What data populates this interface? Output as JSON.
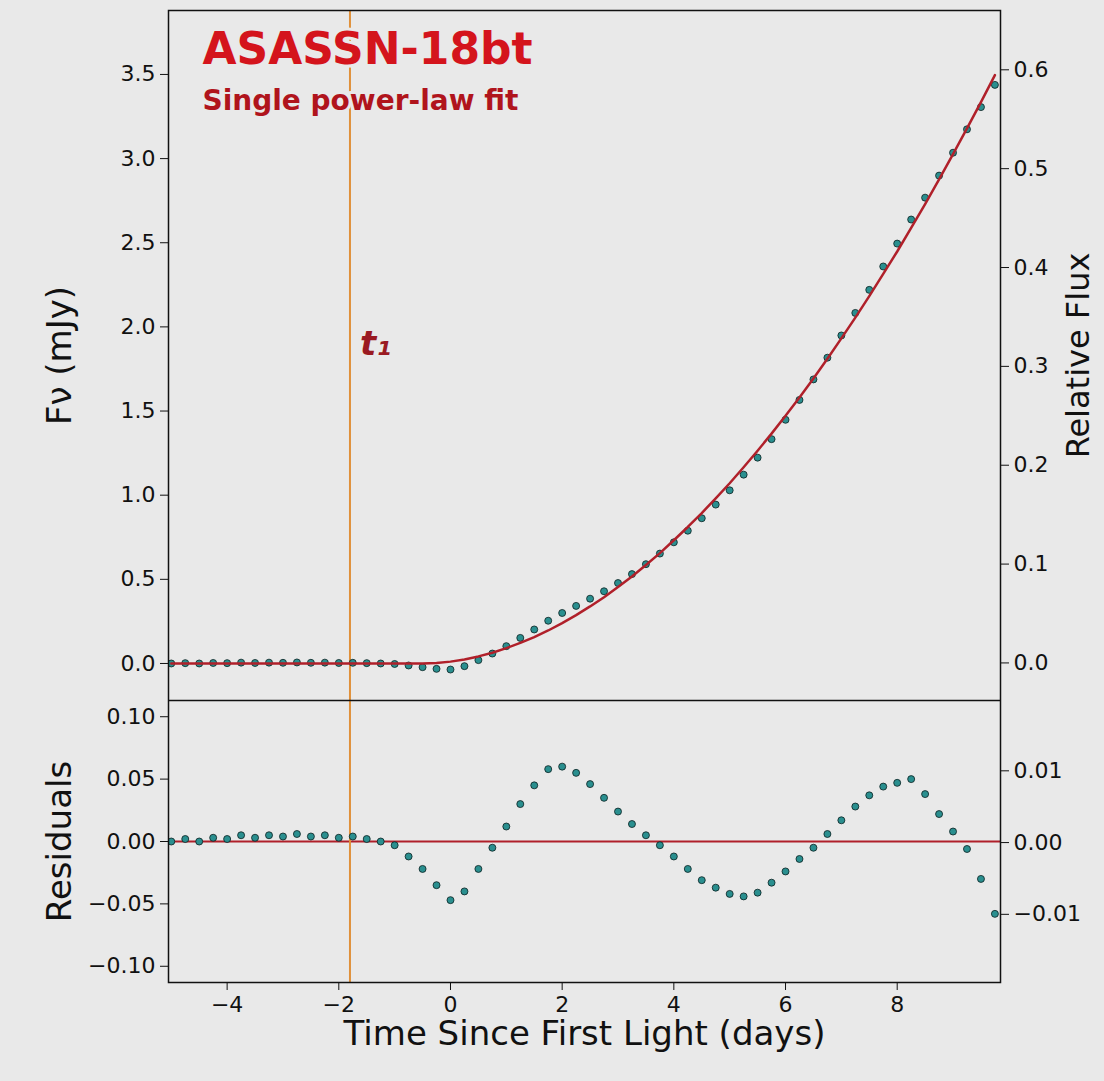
{
  "chart_data": [
    {
      "type": "scatter",
      "title": "ASASSN-18bt",
      "subtitle": "Single power-law fit",
      "ylabel": "Fν (mJy)",
      "y2label": "Relative Flux",
      "grid": false,
      "tick_labels": "y",
      "x": [
        -5,
        -4.75,
        -4.5,
        -4.25,
        -4,
        -3.75,
        -3.5,
        -3.25,
        -3,
        -2.75,
        -2.5,
        -2.25,
        -2,
        -1.75,
        -1.5,
        -1.25,
        -1,
        -0.75,
        -0.5,
        -0.25,
        0,
        0.25,
        0.5,
        0.75,
        1,
        1.25,
        1.5,
        1.75,
        2,
        2.25,
        2.5,
        2.75,
        3,
        3.25,
        3.5,
        3.75,
        4,
        4.25,
        4.5,
        4.75,
        5,
        5.25,
        5.5,
        5.75,
        6,
        6.25,
        6.5,
        6.75,
        7,
        7.25,
        7.5,
        7.75,
        8,
        8.25,
        8.5,
        8.75,
        9,
        9.25,
        9.5,
        9.75
      ],
      "xlim": [
        -5.05,
        9.85
      ],
      "xticks": [
        {
          "value": -4,
          "label": "−4"
        },
        {
          "value": -2,
          "label": "−2"
        },
        0,
        2,
        4,
        6,
        8
      ],
      "ylim": [
        -0.22,
        3.88
      ],
      "yticks": [
        {
          "value": 0,
          "label": "0.0"
        },
        0.5,
        {
          "value": 1,
          "label": "1.0"
        },
        1.5,
        {
          "value": 2,
          "label": "2.0"
        },
        2.5,
        {
          "value": 3,
          "label": "3.0"
        },
        3.5
      ],
      "y2lim": [
        -0.038,
        0.66
      ],
      "y2ticks": [
        {
          "value": 0,
          "label": "0.0"
        },
        0.1,
        0.2,
        0.3,
        0.4,
        0.5,
        0.6
      ],
      "series": [
        {
          "type": "scatter",
          "color": "#2a8f8f",
          "marker": "circle",
          "values": [
            0,
            0.002,
            0,
            0.003,
            0.002,
            0.005,
            0.003,
            0.005,
            0.004,
            0.006,
            0.004,
            0.005,
            0.003,
            0.004,
            0.002,
            0,
            -0.003,
            -0.012,
            -0.022,
            -0.032,
            -0.036,
            -0.016,
            0.02,
            0.059,
            0.103,
            0.152,
            0.202,
            0.254,
            0.3,
            0.342,
            0.385,
            0.429,
            0.478,
            0.531,
            0.59,
            0.653,
            0.72,
            0.789,
            0.863,
            0.944,
            1.029,
            1.122,
            1.223,
            1.333,
            1.448,
            1.566,
            1.688,
            1.817,
            1.949,
            2.083,
            2.22,
            2.359,
            2.495,
            2.638,
            2.768,
            2.899,
            3.035,
            3.174,
            3.306,
            3.438
          ]
        },
        {
          "type": "line",
          "color": "#b0202a",
          "line_style": "solid",
          "values": [
            0,
            0,
            0,
            0,
            0,
            0,
            0,
            0,
            0,
            0,
            0,
            0,
            0,
            0,
            0,
            0,
            0,
            0,
            0,
            0.003,
            0.011,
            0.024,
            0.042,
            0.064,
            0.091,
            0.122,
            0.157,
            0.196,
            0.24,
            0.287,
            0.339,
            0.394,
            0.454,
            0.517,
            0.585,
            0.656,
            0.732,
            0.811,
            0.894,
            0.981,
            1.071,
            1.166,
            1.264,
            1.366,
            1.472,
            1.58,
            1.693,
            1.811,
            1.932,
            2.055,
            2.183,
            2.315,
            2.448,
            2.588,
            2.73,
            2.877,
            3.027,
            3.18,
            3.336,
            3.496
          ]
        }
      ],
      "vlines": [
        {
          "x": -1.8,
          "color": "#e0903a",
          "label": "t₁"
        }
      ]
    },
    {
      "type": "scatter",
      "xlabel": "Time Since First Light (days)",
      "ylabel": "Residuals",
      "grid": false,
      "tick_labels": true,
      "x": [
        -5,
        -4.75,
        -4.5,
        -4.25,
        -4,
        -3.75,
        -3.5,
        -3.25,
        -3,
        -2.75,
        -2.5,
        -2.25,
        -2,
        -1.75,
        -1.5,
        -1.25,
        -1,
        -0.75,
        -0.5,
        -0.25,
        0,
        0.25,
        0.5,
        0.75,
        1,
        1.25,
        1.5,
        1.75,
        2,
        2.25,
        2.5,
        2.75,
        3,
        3.25,
        3.5,
        3.75,
        4,
        4.25,
        4.5,
        4.75,
        5,
        5.25,
        5.5,
        5.75,
        6,
        6.25,
        6.5,
        6.75,
        7,
        7.25,
        7.5,
        7.75,
        8,
        8.25,
        8.5,
        8.75,
        9,
        9.25,
        9.5,
        9.75
      ],
      "xlim": [
        -5.05,
        9.85
      ],
      "xticks": [
        {
          "value": -4,
          "label": "−4"
        },
        {
          "value": -2,
          "label": "−2"
        },
        0,
        2,
        4,
        6,
        8
      ],
      "ylim": [
        -0.113,
        0.113
      ],
      "yticks": [
        {
          "value": -0.1,
          "label": "−0.10"
        },
        {
          "value": -0.05,
          "label": "−0.05"
        },
        {
          "value": 0,
          "label": "0.00"
        },
        0.05,
        {
          "value": 0.1,
          "label": "0.10"
        }
      ],
      "y2lim": [
        -0.0195,
        0.0198
      ],
      "y2ticks": [
        {
          "value": -0.01,
          "label": "−0.01"
        },
        {
          "value": 0,
          "label": "0.00"
        },
        0.01
      ],
      "series": [
        {
          "type": "scatter",
          "color": "#2a8f8f",
          "marker": "circle",
          "values": [
            0,
            0.002,
            0,
            0.003,
            0.002,
            0.005,
            0.003,
            0.005,
            0.004,
            0.006,
            0.004,
            0.005,
            0.003,
            0.004,
            0.002,
            0,
            -0.003,
            -0.012,
            -0.022,
            -0.035,
            -0.047,
            -0.04,
            -0.022,
            -0.005,
            0.012,
            0.03,
            0.045,
            0.058,
            0.06,
            0.055,
            0.046,
            0.035,
            0.024,
            0.014,
            0.005,
            -0.003,
            -0.012,
            -0.022,
            -0.031,
            -0.037,
            -0.042,
            -0.044,
            -0.041,
            -0.033,
            -0.024,
            -0.014,
            -0.005,
            0.006,
            0.017,
            0.028,
            0.037,
            0.044,
            0.047,
            0.05,
            0.038,
            0.022,
            0.008,
            -0.006,
            -0.03,
            -0.058
          ]
        }
      ],
      "hlines": [
        {
          "y": 0,
          "color": "#b0202a"
        }
      ],
      "vlines": [
        {
          "x": -1.8,
          "color": "#e0903a"
        }
      ]
    }
  ]
}
